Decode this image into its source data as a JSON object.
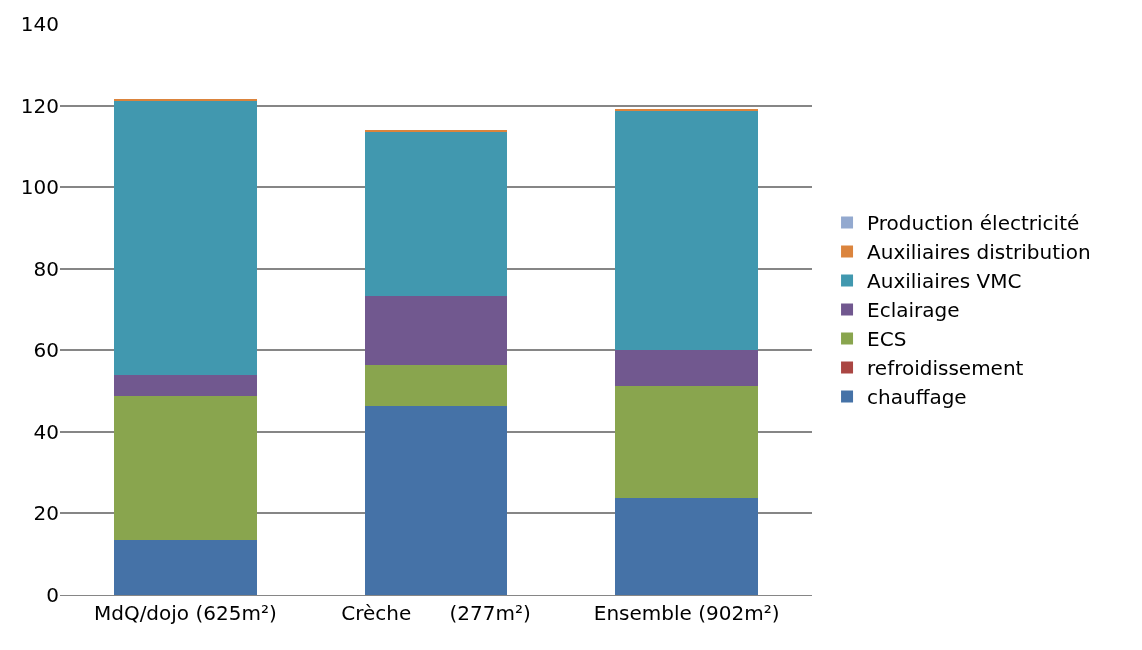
{
  "chart_data": {
    "type": "bar",
    "stacked": true,
    "categories": [
      "MdQ/dojo (625m²)",
      "Crèche      (277m²)",
      "Ensemble (902m²)"
    ],
    "series": [
      {
        "name": "chauffage",
        "color": "#4572a7",
        "values": [
          13.4,
          46.3,
          23.7
        ]
      },
      {
        "name": "refroidissement",
        "color": "#aa4643",
        "values": [
          0,
          0,
          0
        ]
      },
      {
        "name": "ECS",
        "color": "#89a54e",
        "values": [
          35.5,
          10.1,
          27.5
        ]
      },
      {
        "name": "Eclairage",
        "color": "#71588f",
        "values": [
          5.1,
          16.8,
          8.8
        ]
      },
      {
        "name": "Auxiliaires VMC",
        "color": "#4198af",
        "values": [
          67.2,
          40.5,
          58.9
        ]
      },
      {
        "name": "Auxiliaires distribution",
        "color": "#db843d",
        "values": [
          0.2,
          0.2,
          0.2
        ]
      },
      {
        "name": "Production électricité",
        "color": "#93a9cf",
        "values": [
          0,
          0,
          0
        ]
      }
    ],
    "ylim": [
      0,
      140
    ],
    "yticks": [
      0,
      20,
      40,
      60,
      80,
      100,
      120,
      140
    ],
    "grid": "y",
    "legend": "right"
  }
}
